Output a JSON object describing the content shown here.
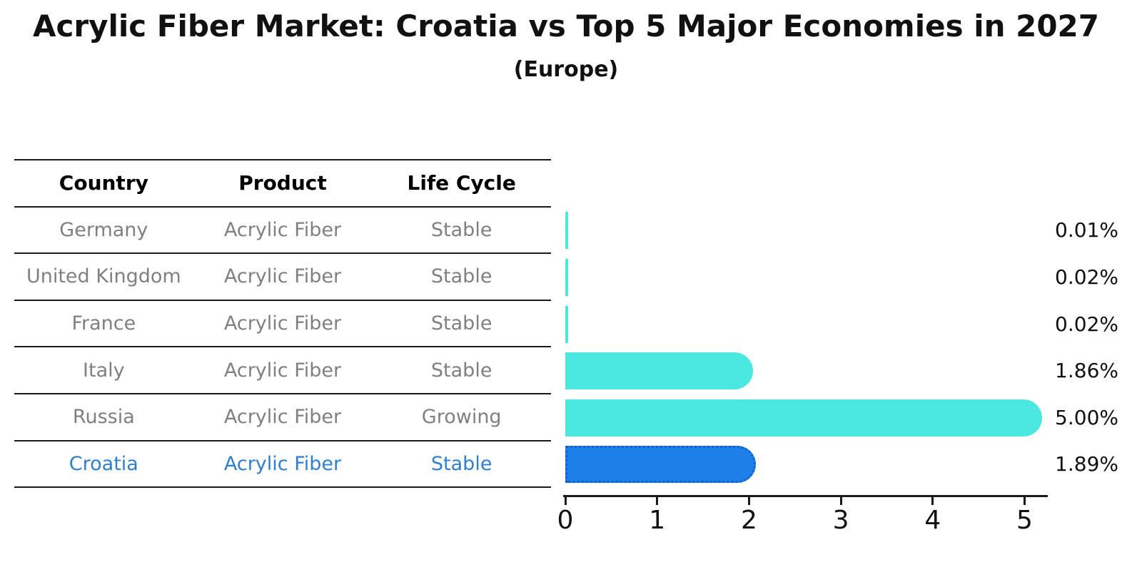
{
  "title": "Acrylic Fiber Market: Croatia vs Top 5 Major Economies in 2027",
  "subtitle": "(Europe)",
  "table": {
    "columns": [
      "Country",
      "Product",
      "Life Cycle"
    ],
    "rows": [
      {
        "country": "Germany",
        "product": "Acrylic Fiber",
        "life_cycle": "Stable",
        "highlight": false
      },
      {
        "country": "United Kingdom",
        "product": "Acrylic Fiber",
        "life_cycle": "Stable",
        "highlight": false
      },
      {
        "country": "France",
        "product": "Acrylic Fiber",
        "life_cycle": "Stable",
        "highlight": false
      },
      {
        "country": "Italy",
        "product": "Acrylic Fiber",
        "life_cycle": "Stable",
        "highlight": false
      },
      {
        "country": "Russia",
        "product": "Acrylic Fiber",
        "life_cycle": "Growing",
        "highlight": false
      },
      {
        "country": "Croatia",
        "product": "Acrylic Fiber",
        "life_cycle": "Stable",
        "highlight": true
      }
    ]
  },
  "chart_data": {
    "type": "bar",
    "orientation": "horizontal",
    "title": "Acrylic Fiber Market: Croatia vs Top 5 Major Economies in 2027",
    "subtitle": "(Europe)",
    "categories": [
      "Germany",
      "United Kingdom",
      "France",
      "Italy",
      "Russia",
      "Croatia"
    ],
    "values": [
      0.01,
      0.02,
      0.02,
      1.86,
      5.0,
      1.89
    ],
    "value_labels": [
      "0.01%",
      "0.02%",
      "0.02%",
      "1.86%",
      "5.00%",
      "1.89%"
    ],
    "x_ticks": [
      "0",
      "1",
      "2",
      "3",
      "4",
      "5"
    ],
    "xlim": [
      0,
      5.25
    ],
    "grid": false,
    "legend": "none",
    "highlight_category": "Croatia",
    "colors": {
      "bar": "#4AE8E0",
      "highlight_bar": "#1E7FE8",
      "highlight_border": "#0E62D8",
      "highlight_text": "#2E7FD0",
      "row_text": "#808080",
      "header_text": "#000000",
      "axis": "#1a1a1a",
      "label_text": "#111111"
    }
  }
}
